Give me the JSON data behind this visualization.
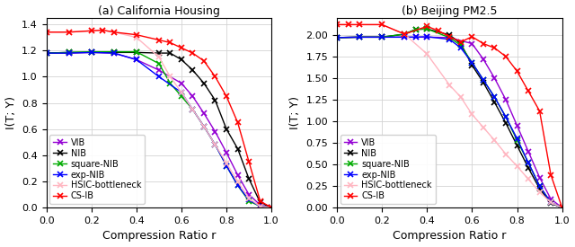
{
  "subplot_a": {
    "title": "(a) California Housing",
    "ylabel": "I(T; Y)",
    "xlabel": "Compression Ratio r",
    "ylim": [
      0.0,
      1.45
    ],
    "yticks": [
      0.0,
      0.2,
      0.4,
      0.6,
      0.8,
      1.0,
      1.2,
      1.4
    ],
    "xlim": [
      0.0,
      1.0
    ],
    "xticks": [
      0.0,
      0.2,
      0.4,
      0.6,
      0.8,
      1.0
    ],
    "series": {
      "VIB": {
        "color": "#9400D3",
        "x": [
          0.0,
          0.1,
          0.2,
          0.3,
          0.4,
          0.5,
          0.6,
          0.65,
          0.7,
          0.75,
          0.8,
          0.85,
          0.9,
          0.95,
          1.0
        ],
        "y": [
          1.18,
          1.18,
          1.185,
          1.18,
          1.13,
          1.05,
          0.95,
          0.85,
          0.72,
          0.58,
          0.42,
          0.25,
          0.1,
          0.02,
          0.0
        ]
      },
      "NIB": {
        "color": "#000000",
        "x": [
          0.0,
          0.1,
          0.2,
          0.3,
          0.4,
          0.5,
          0.55,
          0.6,
          0.65,
          0.7,
          0.75,
          0.8,
          0.85,
          0.9,
          0.95,
          1.0
        ],
        "y": [
          1.18,
          1.185,
          1.185,
          1.185,
          1.185,
          1.18,
          1.18,
          1.13,
          1.05,
          0.95,
          0.82,
          0.6,
          0.45,
          0.22,
          0.04,
          0.0
        ]
      },
      "square-NIB": {
        "color": "#00AA00",
        "x": [
          0.0,
          0.1,
          0.2,
          0.3,
          0.4,
          0.5,
          0.55,
          0.6,
          0.65,
          0.7,
          0.75,
          0.8,
          0.85,
          0.9,
          0.95,
          1.0
        ],
        "y": [
          1.18,
          1.185,
          1.19,
          1.19,
          1.19,
          1.1,
          0.95,
          0.85,
          0.75,
          0.62,
          0.48,
          0.32,
          0.17,
          0.05,
          0.01,
          0.0
        ]
      },
      "exp-NIB": {
        "color": "#0000FF",
        "x": [
          0.0,
          0.1,
          0.2,
          0.3,
          0.4,
          0.5,
          0.6,
          0.65,
          0.7,
          0.75,
          0.8,
          0.85,
          0.9,
          0.95,
          1.0
        ],
        "y": [
          1.18,
          1.18,
          1.185,
          1.18,
          1.13,
          1.0,
          0.88,
          0.75,
          0.62,
          0.48,
          0.32,
          0.17,
          0.06,
          0.01,
          0.0
        ]
      },
      "HSIC-bottleneck": {
        "color": "#FFB6C1",
        "x": [
          0.0,
          0.1,
          0.2,
          0.25,
          0.3,
          0.4,
          0.5,
          0.55,
          0.6,
          0.65,
          0.7,
          0.75,
          0.8,
          0.85,
          0.9,
          0.95,
          1.0
        ],
        "y": [
          1.34,
          1.34,
          1.35,
          1.355,
          1.34,
          1.3,
          1.15,
          1.0,
          0.88,
          0.75,
          0.62,
          0.48,
          0.34,
          0.2,
          0.07,
          0.01,
          0.0
        ]
      },
      "CS-IB": {
        "color": "#FF0000",
        "x": [
          0.0,
          0.1,
          0.2,
          0.25,
          0.3,
          0.4,
          0.5,
          0.55,
          0.6,
          0.65,
          0.7,
          0.75,
          0.8,
          0.85,
          0.9,
          0.95,
          1.0
        ],
        "y": [
          1.34,
          1.34,
          1.35,
          1.355,
          1.34,
          1.32,
          1.28,
          1.26,
          1.22,
          1.18,
          1.12,
          1.0,
          0.85,
          0.65,
          0.35,
          0.05,
          0.0
        ]
      }
    }
  },
  "subplot_b": {
    "title": "(b) Beijing PM2.5",
    "ylabel": "I(T; Y)",
    "xlabel": "Compression Ratio r",
    "ylim": [
      0.0,
      2.2
    ],
    "yticks": [
      0.0,
      0.25,
      0.5,
      0.75,
      1.0,
      1.25,
      1.5,
      1.75,
      2.0
    ],
    "xlim": [
      0.0,
      1.0
    ],
    "xticks": [
      0.0,
      0.2,
      0.4,
      0.6,
      0.8,
      1.0
    ],
    "series": {
      "VIB": {
        "color": "#9400D3",
        "x": [
          0.0,
          0.1,
          0.2,
          0.3,
          0.35,
          0.4,
          0.5,
          0.6,
          0.65,
          0.7,
          0.75,
          0.8,
          0.85,
          0.9,
          0.95,
          1.0
        ],
        "y": [
          1.97,
          1.975,
          1.975,
          1.975,
          1.975,
          1.975,
          1.97,
          1.9,
          1.72,
          1.5,
          1.25,
          0.95,
          0.65,
          0.35,
          0.1,
          0.0
        ]
      },
      "NIB": {
        "color": "#000000",
        "x": [
          0.0,
          0.1,
          0.2,
          0.3,
          0.35,
          0.4,
          0.5,
          0.55,
          0.6,
          0.65,
          0.7,
          0.75,
          0.8,
          0.85,
          0.9,
          0.95,
          1.0
        ],
        "y": [
          1.97,
          1.975,
          1.975,
          2.01,
          2.065,
          2.07,
          2.0,
          1.9,
          1.65,
          1.45,
          1.22,
          0.98,
          0.72,
          0.46,
          0.22,
          0.05,
          0.0
        ]
      },
      "square-NIB": {
        "color": "#00AA00",
        "x": [
          0.0,
          0.1,
          0.2,
          0.3,
          0.35,
          0.4,
          0.5,
          0.55,
          0.6,
          0.65,
          0.7,
          0.75,
          0.8,
          0.85,
          0.9,
          0.95,
          1.0
        ],
        "y": [
          1.97,
          1.975,
          1.975,
          2.01,
          2.065,
          2.07,
          1.97,
          1.88,
          1.68,
          1.48,
          1.28,
          1.05,
          0.78,
          0.52,
          0.25,
          0.06,
          0.0
        ]
      },
      "exp-NIB": {
        "color": "#0000FF",
        "x": [
          0.0,
          0.1,
          0.2,
          0.3,
          0.35,
          0.4,
          0.5,
          0.55,
          0.6,
          0.65,
          0.7,
          0.75,
          0.8,
          0.85,
          0.9,
          0.95,
          1.0
        ],
        "y": [
          1.97,
          1.975,
          1.975,
          1.975,
          1.975,
          1.98,
          1.95,
          1.85,
          1.68,
          1.48,
          1.28,
          1.05,
          0.8,
          0.52,
          0.25,
          0.06,
          0.0
        ]
      },
      "HSIC-bottleneck": {
        "color": "#FFB6C1",
        "x": [
          0.0,
          0.05,
          0.1,
          0.2,
          0.3,
          0.4,
          0.5,
          0.55,
          0.6,
          0.65,
          0.7,
          0.75,
          0.8,
          0.85,
          0.9,
          0.95,
          1.0
        ],
        "y": [
          2.12,
          2.12,
          2.12,
          2.12,
          2.01,
          1.78,
          1.42,
          1.28,
          1.08,
          0.93,
          0.78,
          0.62,
          0.48,
          0.33,
          0.18,
          0.06,
          0.0
        ]
      },
      "CS-IB": {
        "color": "#FF0000",
        "x": [
          0.0,
          0.05,
          0.1,
          0.2,
          0.3,
          0.4,
          0.45,
          0.5,
          0.55,
          0.6,
          0.65,
          0.7,
          0.75,
          0.8,
          0.85,
          0.9,
          0.95,
          1.0
        ],
        "y": [
          2.12,
          2.12,
          2.12,
          2.12,
          2.01,
          2.1,
          2.05,
          1.98,
          1.92,
          1.98,
          1.9,
          1.85,
          1.75,
          1.58,
          1.35,
          1.12,
          0.38,
          0.0
        ]
      }
    }
  },
  "legend_order": [
    "VIB",
    "NIB",
    "square-NIB",
    "exp-NIB",
    "HSIC-bottleneck",
    "CS-IB"
  ],
  "marker": "x",
  "markersize": 4,
  "markeredgewidth": 1.2,
  "linewidth": 1.0,
  "figsize": [
    6.4,
    2.75
  ],
  "dpi": 100
}
